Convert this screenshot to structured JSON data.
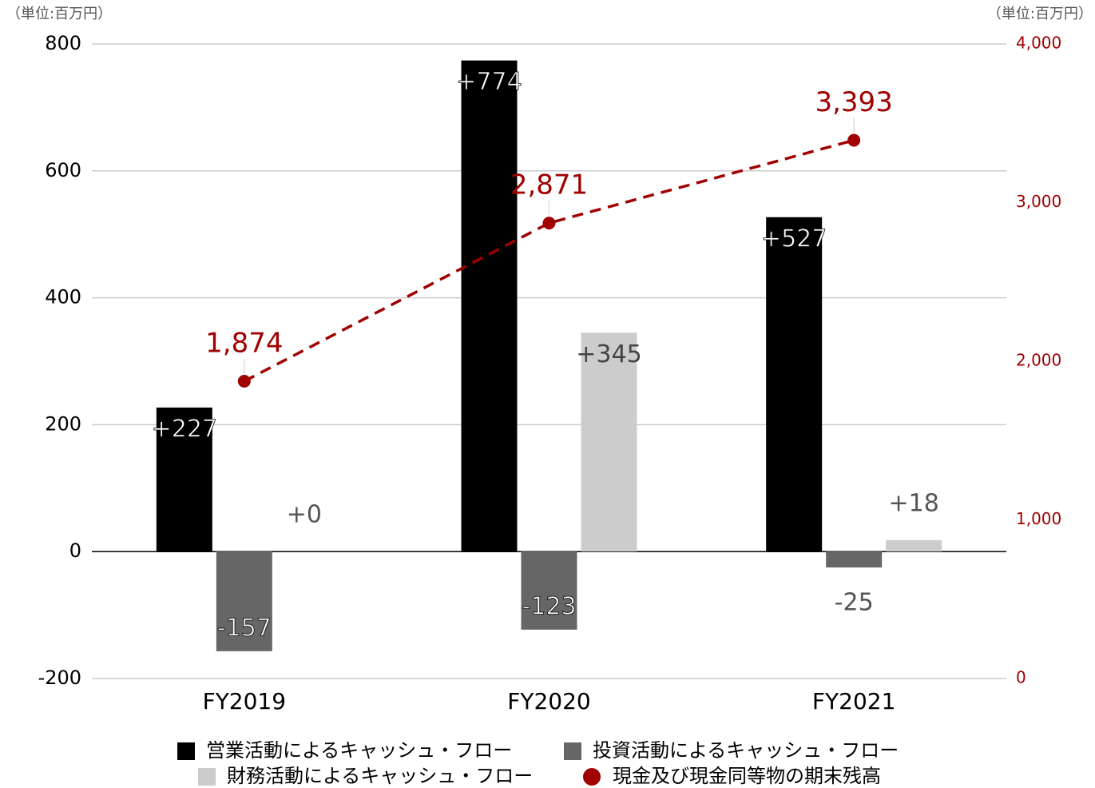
{
  "chart_data": {
    "type": "bar",
    "y_unit_label": "（単位:百万円）",
    "y2_unit_label": "（単位:百万円）",
    "categories": [
      "FY2019",
      "FY2020",
      "FY2021"
    ],
    "series": [
      {
        "name": "営業活動によるキャッシュ・フロー",
        "color": "#000000",
        "values": [
          227,
          774,
          527
        ],
        "value_labels": [
          "+227",
          "+774",
          "+527"
        ]
      },
      {
        "name": "投資活動によるキャッシュ・フロー",
        "color": "#666666",
        "values": [
          -157,
          -123,
          -25
        ]
      },
      {
        "name": "財務活動によるキャッシュ・フロー",
        "color": "#cccccc",
        "values": [
          0,
          345,
          18
        ],
        "value_labels": [
          "+0",
          "+345",
          "+18"
        ]
      },
      {
        "name": "現金及び現金同等物の期末残高",
        "type": "line",
        "axis": "y2",
        "color": "#a00000",
        "line_style": "dashed",
        "values": [
          1874,
          2871,
          3393
        ],
        "value_labels": [
          "1,874",
          "2,871",
          "3,393"
        ]
      }
    ],
    "ylim": [
      -200,
      800
    ],
    "yticks": [
      -200,
      0,
      200,
      400,
      600,
      800
    ],
    "y2lim": [
      0,
      4000
    ],
    "y2ticks": [
      0,
      {
        "value": 1000,
        "label": "1,000"
      },
      {
        "value": 2000,
        "label": "2,000"
      },
      {
        "value": 3000,
        "label": "3,000"
      },
      {
        "value": 4000,
        "label": "4,000"
      }
    ],
    "grid": true,
    "legend": "bottom"
  }
}
